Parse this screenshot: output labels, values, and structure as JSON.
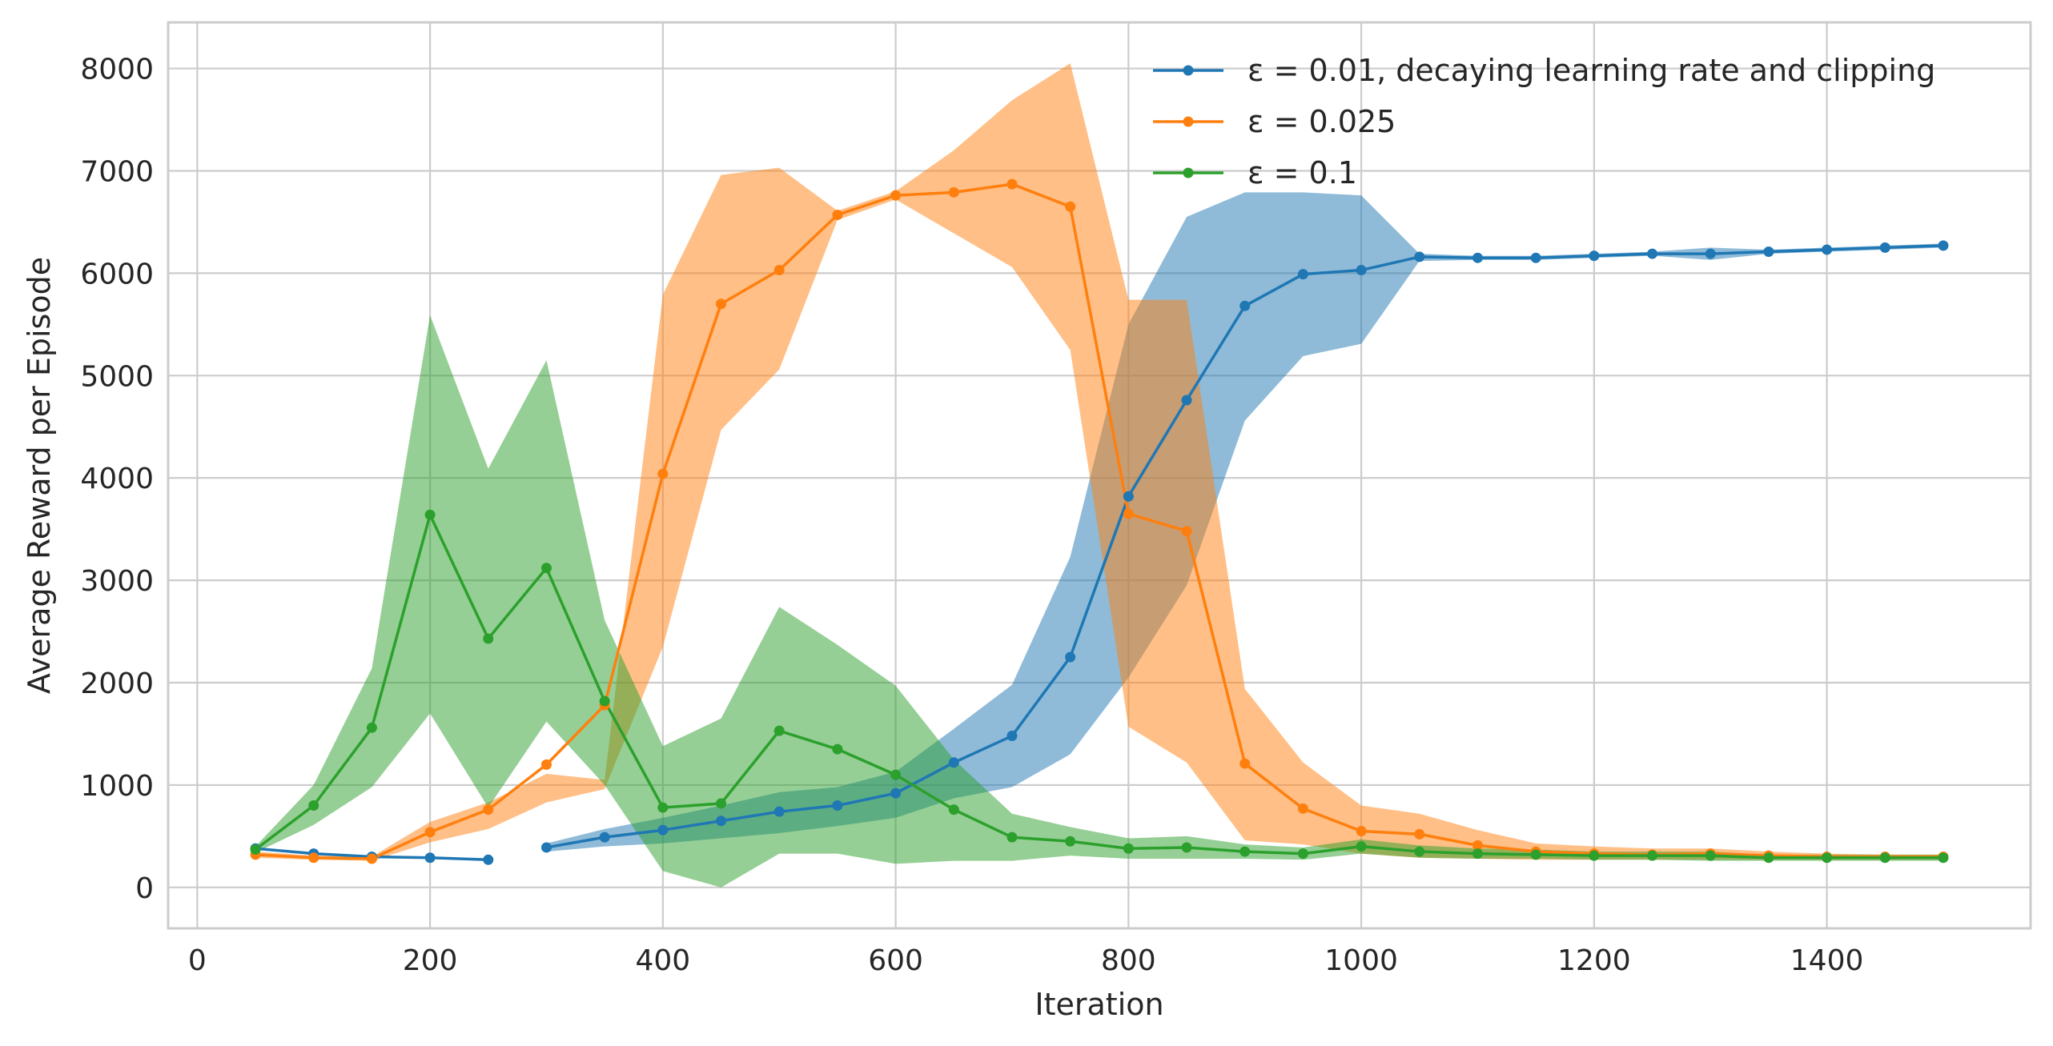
{
  "chart_data": {
    "type": "line",
    "xlabel": "Iteration",
    "ylabel": "Average Reward per Episode",
    "xlim": [
      -25,
      1575
    ],
    "ylim": [
      -400,
      8450
    ],
    "xticks": [
      0,
      200,
      400,
      600,
      800,
      1000,
      1200,
      1400
    ],
    "yticks": [
      0,
      1000,
      2000,
      3000,
      4000,
      5000,
      6000,
      7000,
      8000
    ],
    "grid": true,
    "legend_position": "top-right",
    "x": [
      50,
      100,
      150,
      200,
      250,
      300,
      350,
      400,
      450,
      500,
      550,
      600,
      650,
      700,
      750,
      800,
      850,
      900,
      950,
      1000,
      1050,
      1100,
      1150,
      1200,
      1250,
      1300,
      1350,
      1400,
      1450,
      1500
    ],
    "series": [
      {
        "name": "ε = 0.01, decaying learning rate and clipping",
        "color": "#1f77b4",
        "values": [
          380,
          330,
          300,
          290,
          270,
          null,
          null,
          null,
          null,
          null,
          null,
          null,
          null,
          null,
          null,
          null,
          null,
          null,
          null,
          null,
          null,
          null,
          null,
          null,
          null,
          null,
          null,
          null,
          null,
          null
        ],
        "segments": [
          {
            "x": [
              50,
              100,
              150,
              200,
              250
            ],
            "y": [
              380,
              330,
              300,
              290,
              270
            ]
          },
          {
            "x": [
              300,
              350,
              400,
              450,
              500,
              550,
              600,
              650,
              700,
              750,
              800,
              850,
              900,
              950,
              1000,
              1050,
              1100,
              1150,
              1200,
              1250,
              1300,
              1350,
              1400,
              1450,
              1500
            ],
            "y": [
              390,
              490,
              560,
              650,
              740,
              800,
              920,
              1220,
              1480,
              2250,
              3820,
              4760,
              5680,
              5990,
              6030,
              6160,
              6150,
              6150,
              6170,
              6190,
              6190,
              6210,
              6230,
              6250,
              6270
            ]
          }
        ],
        "band_x": [
          300,
          350,
          400,
          450,
          500,
          550,
          600,
          650,
          700,
          750,
          800,
          850,
          900,
          950,
          1000,
          1050,
          1100,
          1150,
          1200,
          1250,
          1300,
          1350,
          1400,
          1450,
          1500
        ],
        "band_lower": [
          350,
          400,
          430,
          480,
          530,
          600,
          680,
          870,
          980,
          1300,
          2050,
          2950,
          4560,
          5190,
          5310,
          6120,
          6130,
          6130,
          6150,
          6170,
          6130,
          6190,
          6210,
          6230,
          6250
        ],
        "band_upper": [
          430,
          570,
          680,
          800,
          930,
          980,
          1130,
          1550,
          1980,
          3230,
          5500,
          6550,
          6790,
          6790,
          6760,
          6190,
          6170,
          6170,
          6190,
          6210,
          6250,
          6230,
          6250,
          6270,
          6290
        ]
      },
      {
        "name": "ε = 0.025",
        "color": "#ff7f0e",
        "x": [
          50,
          100,
          150,
          200,
          250,
          300,
          350,
          400,
          450,
          500,
          550,
          600,
          650,
          700,
          750,
          800,
          850,
          900,
          950,
          1000,
          1050,
          1100,
          1150,
          1200,
          1250,
          1300,
          1350,
          1400,
          1450,
          1500
        ],
        "values": [
          320,
          290,
          280,
          540,
          760,
          1200,
          1780,
          4040,
          5700,
          6030,
          6570,
          6760,
          6790,
          6870,
          6650,
          3650,
          3480,
          1210,
          770,
          550,
          520,
          410,
          350,
          330,
          320,
          330,
          310,
          300,
          300,
          300
        ],
        "band_lower": [
          290,
          270,
          260,
          440,
          570,
          830,
          960,
          2350,
          4470,
          5060,
          6520,
          6720,
          6390,
          6060,
          5250,
          1570,
          1220,
          460,
          420,
          330,
          290,
          280,
          270,
          270,
          270,
          270,
          270,
          270,
          270,
          270
        ],
        "band_upper": [
          350,
          310,
          300,
          640,
          830,
          1110,
          1050,
          5790,
          6960,
          7030,
          6610,
          6800,
          7200,
          7690,
          8050,
          5740,
          5740,
          1940,
          1220,
          800,
          720,
          560,
          430,
          400,
          380,
          380,
          350,
          330,
          320,
          320
        ]
      },
      {
        "name": "ε = 0.1",
        "color": "#2ca02c",
        "x": [
          50,
          100,
          150,
          200,
          250,
          300,
          350,
          400,
          450,
          500,
          550,
          600,
          650,
          700,
          750,
          800,
          850,
          900,
          950,
          1000,
          1050,
          1100,
          1150,
          1200,
          1250,
          1300,
          1350,
          1400,
          1450,
          1500
        ],
        "values": [
          370,
          800,
          1560,
          3640,
          2430,
          3120,
          1820,
          780,
          820,
          1530,
          1350,
          1100,
          760,
          490,
          450,
          380,
          390,
          350,
          330,
          400,
          350,
          330,
          320,
          310,
          310,
          310,
          290,
          290,
          290,
          290
        ],
        "band_lower": [
          340,
          610,
          980,
          1700,
          780,
          1620,
          1000,
          160,
          0,
          330,
          330,
          230,
          260,
          260,
          310,
          280,
          280,
          280,
          270,
          330,
          290,
          280,
          280,
          270,
          270,
          260,
          260,
          260,
          260,
          260
        ],
        "band_upper": [
          400,
          1000,
          2140,
          5590,
          4090,
          5150,
          2610,
          1380,
          1650,
          2740,
          2370,
          1970,
          1250,
          720,
          590,
          480,
          500,
          420,
          390,
          470,
          410,
          380,
          370,
          350,
          350,
          350,
          320,
          320,
          320,
          320
        ]
      }
    ]
  }
}
